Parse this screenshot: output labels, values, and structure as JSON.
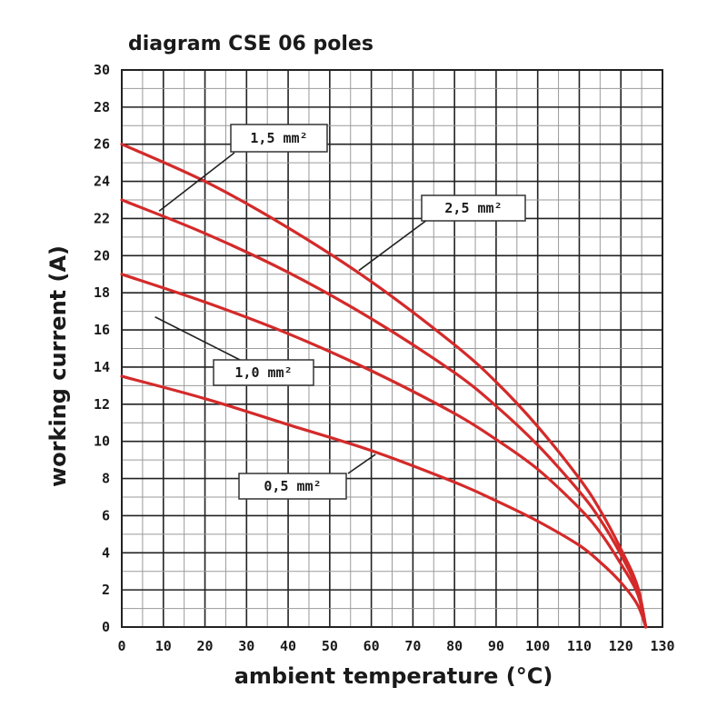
{
  "chart_data": {
    "type": "line",
    "title": "diagram CSE 06 poles",
    "xlabel": "ambient temperature (°C)",
    "ylabel": "working current (A)",
    "xlim": [
      0,
      130
    ],
    "ylim": [
      0,
      30
    ],
    "x_ticks": [
      "0",
      "10",
      "20",
      "30",
      "40",
      "50",
      "60",
      "70",
      "80",
      "90",
      "100",
      "110",
      "120",
      "130"
    ],
    "y_ticks": [
      "0",
      "2",
      "4",
      "6",
      "8",
      "10",
      "12",
      "14",
      "16",
      "18",
      "20",
      "22",
      "24",
      "26",
      "28",
      "30"
    ],
    "grid": true,
    "line_color": "#d42a2a",
    "series": [
      {
        "label": "2,5 mm²",
        "x": [
          0,
          20,
          40,
          60,
          80,
          90,
          100,
          110,
          115,
          120,
          124,
          126
        ],
        "y": [
          26,
          24,
          21.5,
          18.6,
          15.2,
          13.2,
          10.8,
          8.0,
          6.3,
          4.2,
          2.2,
          0
        ]
      },
      {
        "label": "1,5 mm²",
        "x": [
          0,
          20,
          40,
          60,
          80,
          90,
          100,
          110,
          115,
          120,
          124,
          126
        ],
        "y": [
          23,
          21.2,
          19.1,
          16.6,
          13.7,
          11.9,
          9.8,
          7.3,
          5.8,
          3.9,
          2.0,
          0
        ]
      },
      {
        "label": "1,0 mm²",
        "x": [
          0,
          20,
          40,
          60,
          80,
          90,
          100,
          110,
          115,
          120,
          124,
          126
        ],
        "y": [
          19,
          17.5,
          15.8,
          13.8,
          11.5,
          10.1,
          8.5,
          6.4,
          5.1,
          3.4,
          1.8,
          0
        ]
      },
      {
        "label": "0,5 mm²",
        "x": [
          0,
          20,
          40,
          60,
          80,
          90,
          100,
          110,
          115,
          120,
          124,
          126
        ],
        "y": [
          13.5,
          12.3,
          10.9,
          9.5,
          7.8,
          6.8,
          5.7,
          4.4,
          3.5,
          2.4,
          1.2,
          0
        ]
      }
    ]
  }
}
